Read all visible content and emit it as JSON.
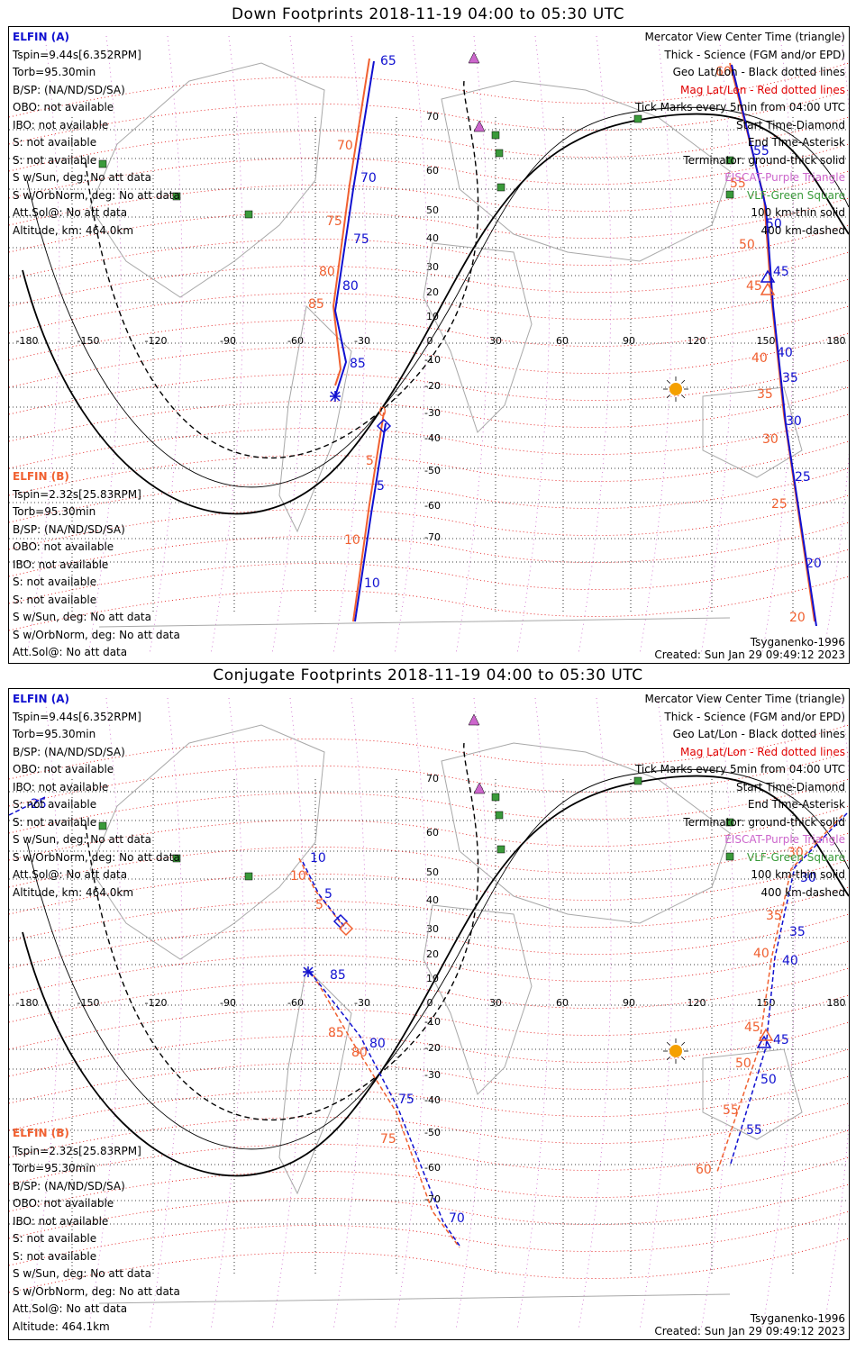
{
  "panels": [
    {
      "id": "down",
      "title": "Down Footprints 2018-11-19 04:00 to 05:30 UTC",
      "created": "Created: Sun Jan 29 09:49:12 2023"
    },
    {
      "id": "conjugate",
      "title": "Conjugate Footprints 2018-11-19 04:00 to 05:30 UTC",
      "created": "Created: Sun Jan 29 09:49:12 2023"
    }
  ],
  "sat_a": {
    "name": "ELFIN (A)",
    "tspin": "Tspin=9.44s[6.352RPM]",
    "torb": "Torb=95.30min",
    "bsp": "B/SP: (NA/ND/SD/SA)",
    "obo": "OBO: not available",
    "ibo": "IBO: not available",
    "s1": "S: not available",
    "s2": "S: not available",
    "swsun": "S w/Sun, deg: No att data",
    "sworb": "S w/OrbNorm, deg: No att data",
    "attsol": "Att.Sol@: No att data",
    "alt": "Altitude, km: 464.0km"
  },
  "sat_b": {
    "name": "ELFIN (B)",
    "tspin": "Tspin=2.32s[25.83RPM]",
    "torb": "Torb=95.30min",
    "bsp": "B/SP: (NA/ND/SD/SA)",
    "obo": "OBO: not available",
    "ibo": "IBO: not available",
    "s1": "S: not available",
    "s2": "S: not available",
    "swsun": "S w/Sun, deg: No att data",
    "sworb": "S w/OrbNorm, deg: No att data",
    "attsol": "Att.Sol@: No att data",
    "alt": "Altitude: 464.1km"
  },
  "legend": {
    "l1": "Mercator View Center Time (triangle)",
    "l2": "Thick - Science (FGM and/or EPD)",
    "l3": "Geo Lat/Lon - Black dotted lines",
    "l4": "Mag Lat/Lon - Red dotted lines",
    "l5": "Tick Marks every 5min from 04:00 UTC",
    "l6": "Start Time-Diamond",
    "l7": "End Time-Asterisk",
    "l8": "Terminator: ground-thick solid",
    "l9": "EISCAT-Purple Triangle",
    "l10": "VLF-Green Square",
    "l11": "100 km-thin solid",
    "l12": "400 km-dashed"
  },
  "model": "Tsyganenko-1996",
  "colors": {
    "sat_a": "#1010d0",
    "sat_b": "#f06030",
    "mag_grid": "#e00000",
    "eiscat": "#cc66cc",
    "vlf": "#3a9a3a",
    "sun": "#f5a000"
  },
  "map": {
    "lon_ticks": [
      "-180",
      "-150",
      "-120",
      "-90",
      "-60",
      "-30",
      "0",
      "30",
      "60",
      "90",
      "120",
      "150",
      "180"
    ],
    "lat_ticks": [
      "70",
      "60",
      "50",
      "40",
      "30",
      "20",
      "10",
      "-10",
      "-20",
      "-30",
      "-40",
      "-50",
      "-60",
      "-70"
    ]
  },
  "down_labels": {
    "a": [
      "65",
      "70",
      "75",
      "80",
      "85",
      "5",
      "10",
      "55",
      "50",
      "45",
      "40",
      "35",
      "30",
      "25",
      "20"
    ],
    "b": [
      "70",
      "75",
      "80",
      "85",
      "0",
      "5",
      "10",
      "60",
      "55",
      "50",
      "45",
      "40",
      "35",
      "30",
      "25",
      "20"
    ]
  },
  "conj_labels": {
    "a": [
      "25",
      "10",
      "5",
      "85",
      "80",
      "75",
      "70",
      "30",
      "35",
      "40",
      "45",
      "50",
      "55"
    ],
    "b": [
      "10",
      "5",
      "85",
      "80",
      "75",
      "30",
      "35",
      "40",
      "45",
      "50",
      "55",
      "60"
    ]
  }
}
